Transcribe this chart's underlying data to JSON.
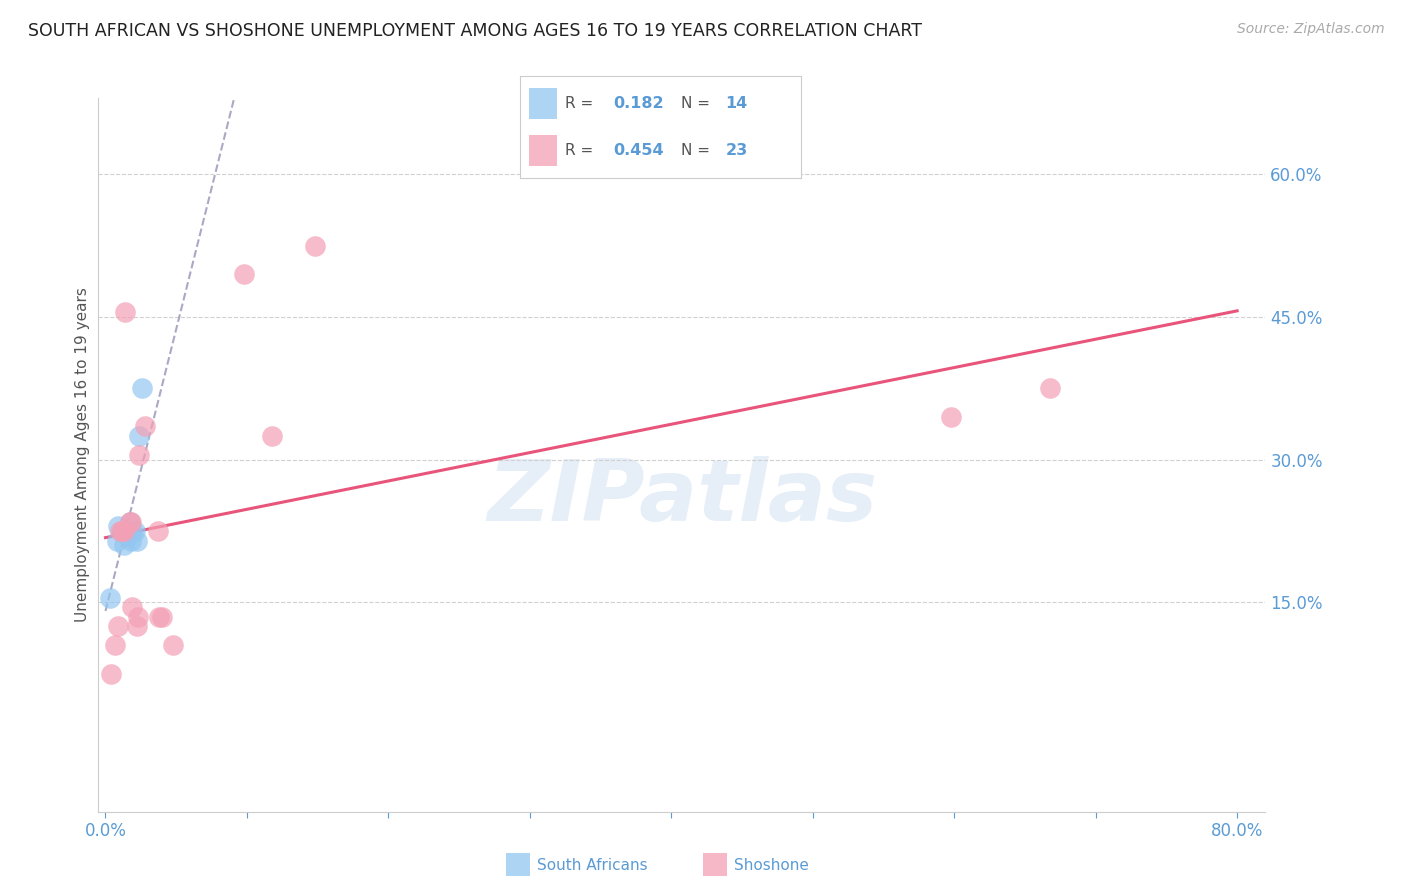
{
  "title": "SOUTH AFRICAN VS SHOSHONE UNEMPLOYMENT AMONG AGES 16 TO 19 YEARS CORRELATION CHART",
  "source": "Source: ZipAtlas.com",
  "ylabel": "Unemployment Among Ages 16 to 19 years",
  "xlim": [
    -0.005,
    0.82
  ],
  "ylim": [
    -0.07,
    0.68
  ],
  "yticks_right": [
    0.15,
    0.3,
    0.45,
    0.6
  ],
  "ytick_labels_right": [
    "15.0%",
    "30.0%",
    "45.0%",
    "60.0%"
  ],
  "south_african_color": "#93c6f0",
  "shoshone_color": "#f4a0b5",
  "trendline_sa_color": "#a0a0c0",
  "trendline_sh_color": "#e8547a",
  "legend_r_sa": "0.182",
  "legend_n_sa": "14",
  "legend_r_sh": "0.454",
  "legend_n_sh": "23",
  "sa_x": [
    0.003,
    0.008,
    0.009,
    0.012,
    0.013,
    0.015,
    0.016,
    0.017,
    0.018,
    0.019,
    0.021,
    0.022,
    0.024,
    0.026
  ],
  "sa_y": [
    0.155,
    0.215,
    0.23,
    0.225,
    0.21,
    0.225,
    0.22,
    0.235,
    0.215,
    0.225,
    0.225,
    0.215,
    0.325,
    0.375
  ],
  "sh_x": [
    0.004,
    0.007,
    0.009,
    0.01,
    0.012,
    0.013,
    0.014,
    0.017,
    0.018,
    0.019,
    0.022,
    0.023,
    0.024,
    0.028,
    0.037,
    0.038,
    0.04,
    0.048,
    0.098,
    0.118,
    0.148,
    0.598,
    0.668
  ],
  "sh_y": [
    0.075,
    0.105,
    0.125,
    0.225,
    0.225,
    0.225,
    0.455,
    0.235,
    0.235,
    0.145,
    0.125,
    0.135,
    0.305,
    0.335,
    0.225,
    0.135,
    0.135,
    0.105,
    0.495,
    0.325,
    0.525,
    0.345,
    0.375
  ],
  "watermark_text": "ZIPatlas",
  "background_color": "#ffffff",
  "grid_color": "#d0d0d0"
}
